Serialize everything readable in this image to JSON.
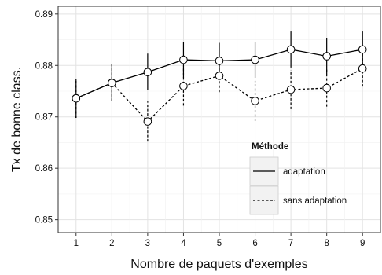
{
  "chart_data": {
    "type": "line",
    "xlabel": "Nombre de paquets d'exemples",
    "ylabel": "Tx de bonne class.",
    "x": [
      1,
      2,
      3,
      4,
      5,
      6,
      7,
      8,
      9
    ],
    "xlim": [
      0.5,
      9.5
    ],
    "ylim": [
      0.8475,
      0.8915
    ],
    "yticks": [
      0.85,
      0.86,
      0.87,
      0.88,
      0.89
    ],
    "yticklabels": [
      "0.85",
      "0.86",
      "0.87",
      "0.88",
      "0.89"
    ],
    "xticklabels": [
      "1",
      "2",
      "3",
      "4",
      "5",
      "6",
      "7",
      "8",
      "9"
    ],
    "grid": true,
    "legend": {
      "title": "Méthode",
      "position": "lower-right-inside"
    },
    "series": [
      {
        "name": "adaptation",
        "linestyle": "solid",
        "values": [
          0.8736,
          0.8766,
          0.8787,
          0.8811,
          0.8809,
          0.8811,
          0.8831,
          0.8818,
          0.8831
        ],
        "err_low": [
          0.8698,
          0.8731,
          0.8752,
          0.8776,
          0.8774,
          0.8776,
          0.8796,
          0.8783,
          0.8796
        ],
        "err_high": [
          0.8774,
          0.8803,
          0.8823,
          0.8846,
          0.8844,
          0.8846,
          0.8866,
          0.8853,
          0.8866
        ]
      },
      {
        "name": "sans adaptation",
        "linestyle": "dashed",
        "values": [
          0.8736,
          0.8766,
          0.8691,
          0.876,
          0.878,
          0.8731,
          0.8753,
          0.8756,
          0.8794
        ],
        "err_low": [
          0.8698,
          0.8731,
          0.8652,
          0.8722,
          0.8748,
          0.8692,
          0.8715,
          0.872,
          0.8759
        ],
        "err_high": [
          0.8774,
          0.8803,
          0.873,
          0.8798,
          0.8812,
          0.877,
          0.8791,
          0.8792,
          0.8829
        ]
      }
    ]
  }
}
